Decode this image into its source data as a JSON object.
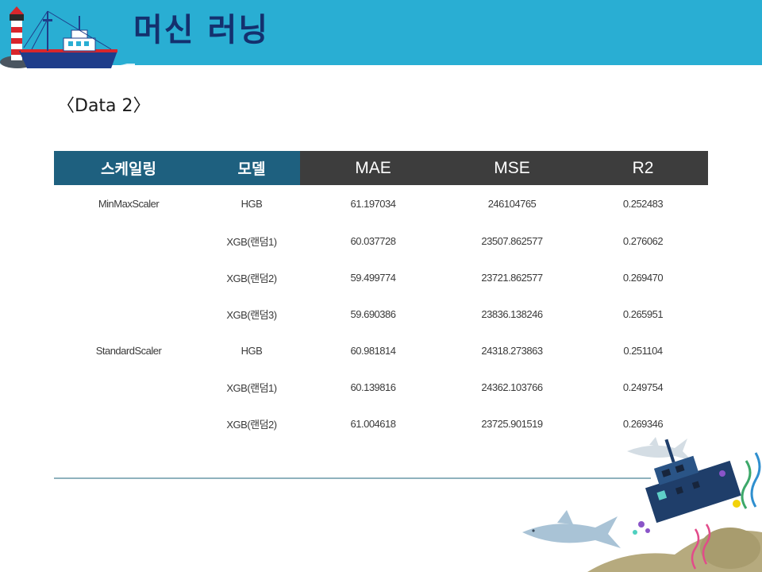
{
  "header": {
    "title": "머신 러닝"
  },
  "section": {
    "heading": "〈Data 2〉"
  },
  "table": {
    "columns": [
      "스케일링",
      "모델",
      "MAE",
      "MSE",
      "R2"
    ],
    "rows": [
      {
        "scaler": "MinMaxScaler",
        "model": "HGB",
        "mae": "61.197034",
        "mse": "246104765",
        "r2": "0.252483"
      },
      {
        "scaler": "",
        "model": "XGB(랜덤1)",
        "mae": "60.037728",
        "mse": "23507.862577",
        "r2": "0.276062"
      },
      {
        "scaler": "",
        "model": "XGB(랜덤2)",
        "mae": "59.499774",
        "mse": "23721.862577",
        "r2": "0.269470"
      },
      {
        "scaler": "",
        "model": "XGB(랜덤3)",
        "mae": "59.690386",
        "mse": "23836.138246",
        "r2": "0.265951"
      },
      {
        "scaler": "StandardScaler",
        "model": "HGB",
        "mae": "60.981814",
        "mse": "24318.273863",
        "r2": "0.251104"
      },
      {
        "scaler": "",
        "model": "XGB(랜덤1)",
        "mae": "60.139816",
        "mse": "24362.103766",
        "r2": "0.249754"
      },
      {
        "scaler": "",
        "model": "XGB(랜덤2)",
        "mae": "61.004618",
        "mse": "23725.901519",
        "r2": "0.269346"
      }
    ]
  },
  "colors": {
    "header_bg": "#29aed3",
    "title": "#14306e",
    "th_blue": "#1e607f",
    "th_dark": "#3d3d3d"
  },
  "icons": {
    "header": "lighthouse-and-fishing-boat-illustration",
    "footer": "shipwreck-sharks-seaweed-illustration"
  }
}
